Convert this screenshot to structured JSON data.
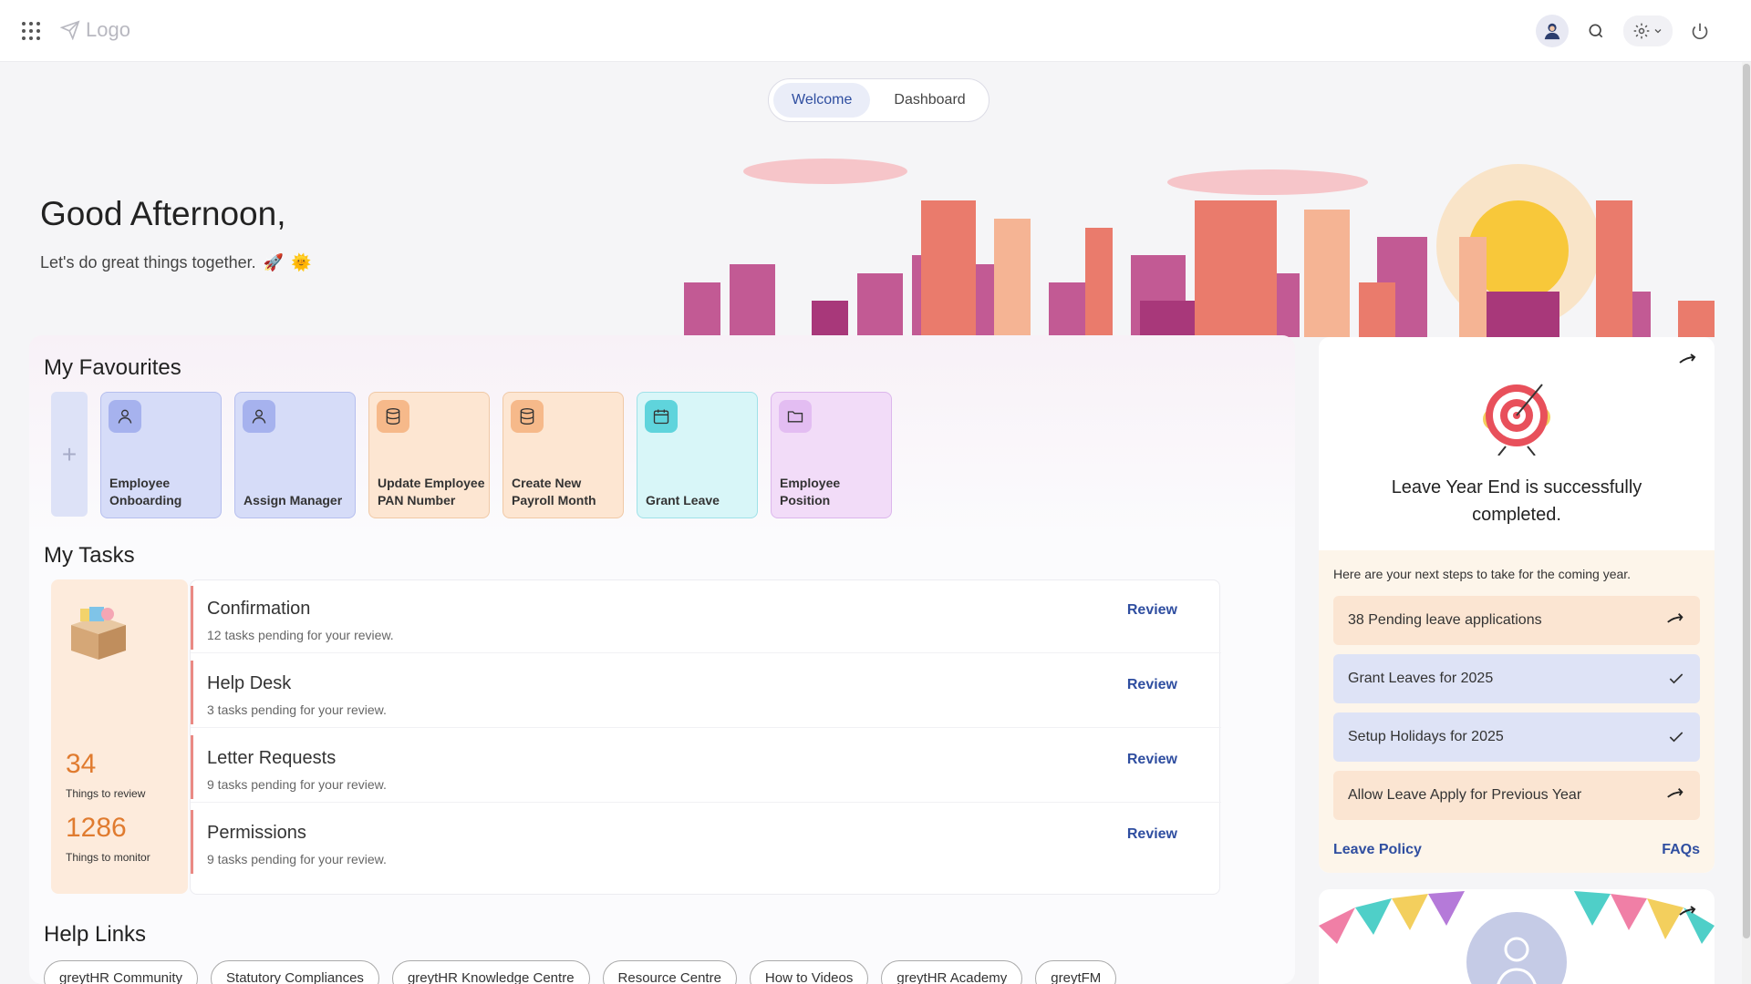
{
  "header": {
    "logo_text": "Logo"
  },
  "tabs": [
    {
      "label": "Welcome",
      "active": true
    },
    {
      "label": "Dashboard",
      "active": false
    }
  ],
  "hero": {
    "greeting": "Good Afternoon,",
    "subtitle": "Let's do great things together.",
    "emoji1": "🚀",
    "emoji2": "🌞"
  },
  "favourites": {
    "title": "My Favourites",
    "add_symbol": "+",
    "items": [
      {
        "label": "Employee Onboarding",
        "icon": "user-icon",
        "color": "blue"
      },
      {
        "label": "Assign Manager",
        "icon": "user-icon",
        "color": "blue"
      },
      {
        "label": "Update Employee PAN Number",
        "icon": "database-icon",
        "color": "peach"
      },
      {
        "label": "Create New Payroll Month",
        "icon": "database-icon",
        "color": "peach"
      },
      {
        "label": "Grant Leave",
        "icon": "calendar-icon",
        "color": "cyan"
      },
      {
        "label": "Employee Position",
        "icon": "folder-icon",
        "color": "lilac"
      }
    ]
  },
  "tasks": {
    "title": "My Tasks",
    "review_count": "34",
    "review_label": "Things to review",
    "monitor_count": "1286",
    "monitor_label": "Things to monitor",
    "items": [
      {
        "title": "Confirmation",
        "subtitle": "12 tasks pending for your review.",
        "action": "Review"
      },
      {
        "title": "Help Desk",
        "subtitle": "3 tasks pending for your review.",
        "action": "Review"
      },
      {
        "title": "Letter Requests",
        "subtitle": "9 tasks pending for your review.",
        "action": "Review"
      },
      {
        "title": "Permissions",
        "subtitle": "9 tasks pending for your review.",
        "action": "Review"
      }
    ]
  },
  "help_links": {
    "title": "Help Links",
    "items": [
      "greytHR Community",
      "Statutory Compliances",
      "greytHR Knowledge Centre",
      "Resource Centre",
      "How to Videos",
      "greytHR Academy",
      "greytFM"
    ]
  },
  "leave_card": {
    "title": "Leave Year End is successfully completed.",
    "next_steps": "Here are your next steps to take for the coming year.",
    "steps": [
      {
        "label": "38 Pending leave applications",
        "status": "arrow",
        "color": "peach"
      },
      {
        "label": "Grant Leaves for 2025",
        "status": "check",
        "color": "blue"
      },
      {
        "label": "Setup Holidays for 2025",
        "status": "check",
        "color": "blue"
      },
      {
        "label": "Allow Leave Apply for Previous Year",
        "status": "arrow",
        "color": "peach"
      }
    ],
    "link_left": "Leave Policy",
    "link_right": "FAQs"
  },
  "colors": {
    "accent_blue": "#2f4ea0",
    "orange_count": "#e07b2f",
    "task_bar": "#ea8a84"
  }
}
